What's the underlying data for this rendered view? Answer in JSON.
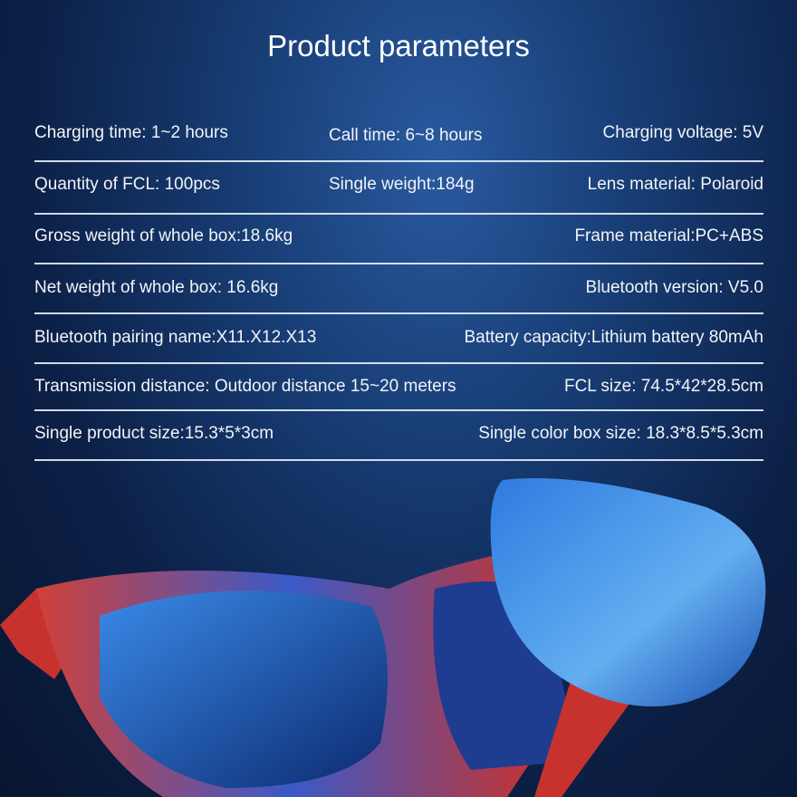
{
  "title": "Product parameters",
  "rows": [
    [
      "Charging time:  1~2 hours",
      "Call time: 6~8 hours",
      "Charging voltage:  5V"
    ],
    [
      "Quantity of FCL:  100pcs",
      "Single weight:184g",
      "Lens material:  Polaroid"
    ],
    [
      "Gross weight of whole box:18.6kg",
      "",
      "Frame material:PC+ABS"
    ],
    [
      "Net weight of whole box:  16.6kg",
      "",
      "Bluetooth version: V5.0"
    ],
    [
      "Bluetooth pairing name:X11.X12.X13",
      "",
      "Battery capacity:Lithium battery 80mAh"
    ],
    [
      "Transmission distance:  Outdoor distance 15~20 meters",
      "",
      "FCL size: 74.5*42*28.5cm"
    ],
    [
      "Single product size:15.3*5*3cm",
      "",
      "Single color box size: 18.3*8.5*5.3cm"
    ]
  ],
  "colors": {
    "background": "#0c2148",
    "frame_red": "#c8322e",
    "lens_blue": "#2a6fd0"
  }
}
